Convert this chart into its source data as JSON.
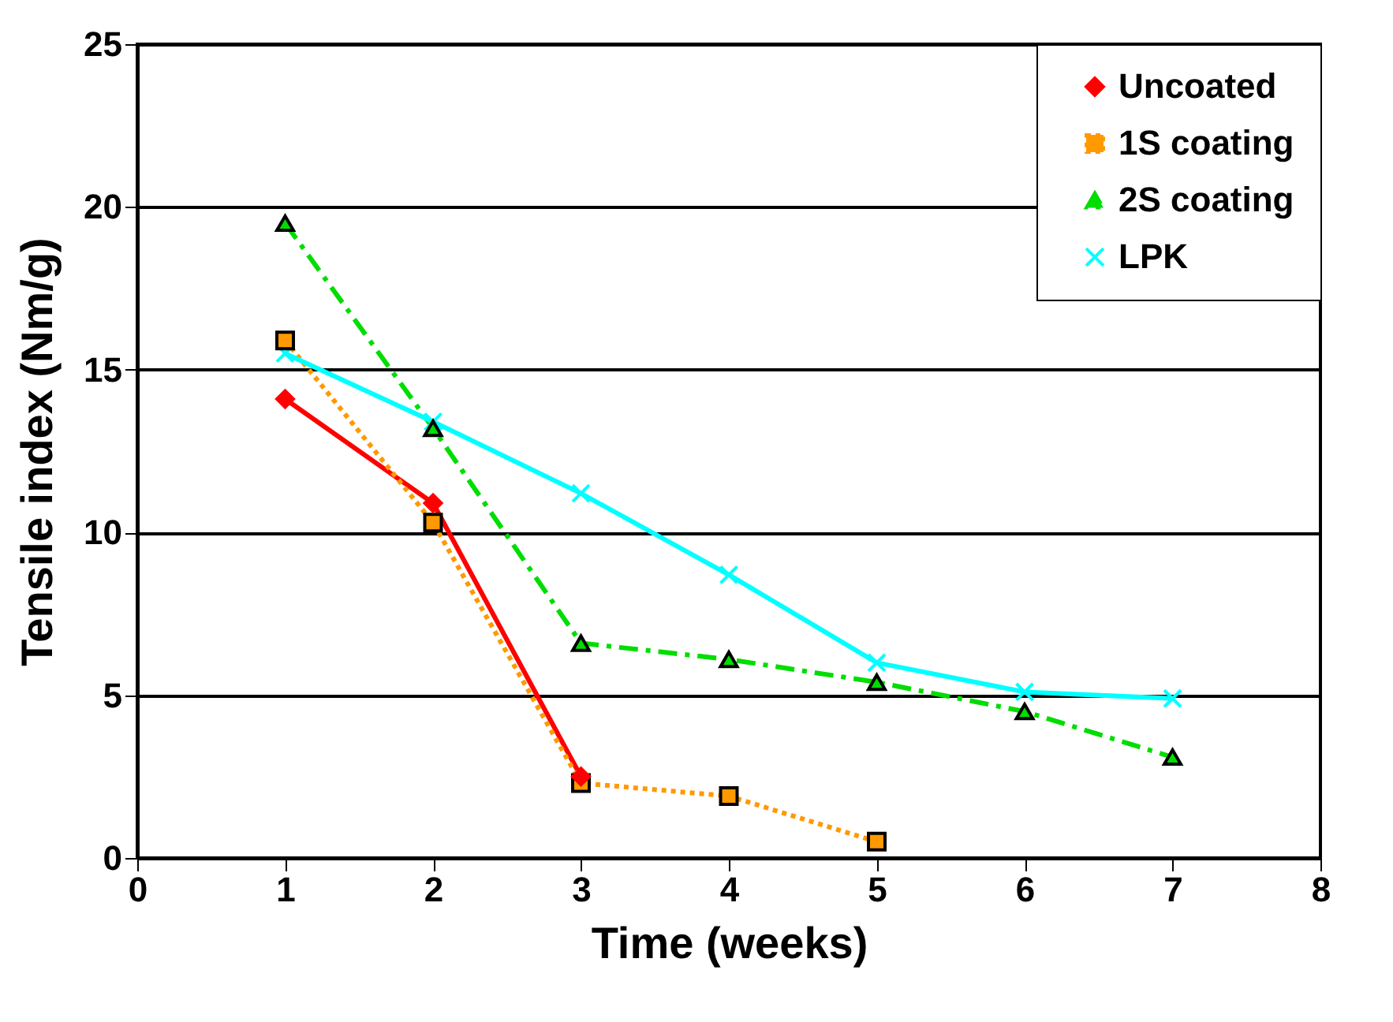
{
  "chart_data": {
    "type": "line",
    "xlabel": "Time  (weeks)",
    "ylabel": "Tensile index (Nm/g)",
    "x": [
      1,
      2,
      3,
      4,
      5,
      6,
      7
    ],
    "series": [
      {
        "name": "Uncoated",
        "color": "#ff0000",
        "marker": "diamond",
        "line_style": "solid",
        "values": [
          14.1,
          10.9,
          2.5,
          null,
          null,
          null,
          null
        ]
      },
      {
        "name": "1S coating",
        "color": "#ff9900",
        "marker": "square",
        "line_style": "dotted",
        "values": [
          15.9,
          10.3,
          2.3,
          1.9,
          0.5,
          null,
          null
        ]
      },
      {
        "name": "2S coating",
        "color": "#00dd00",
        "marker": "triangle",
        "line_style": "dashed",
        "values": [
          19.5,
          13.2,
          6.6,
          6.1,
          5.4,
          4.5,
          3.1
        ]
      },
      {
        "name": "LPK",
        "color": "#00ffff",
        "marker": "cross",
        "line_style": "solid",
        "values": [
          15.5,
          13.4,
          11.2,
          8.7,
          6.0,
          5.1,
          4.9
        ]
      }
    ],
    "xlim": [
      0,
      8
    ],
    "xticks": [
      0,
      1,
      2,
      3,
      4,
      5,
      6,
      7,
      8
    ],
    "ylim": [
      0,
      25
    ],
    "yticks": [
      0,
      5,
      10,
      15,
      20,
      25
    ],
    "grid": "y",
    "legend": "top right"
  }
}
